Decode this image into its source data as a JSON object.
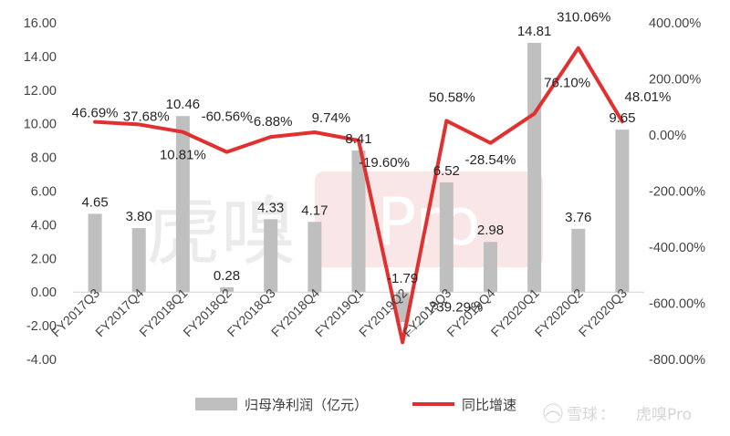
{
  "chart_data": {
    "type": "bar+line",
    "categories": [
      "FY2017Q3",
      "FY2017Q4",
      "FY2018Q1",
      "FY2018Q2",
      "FY2018Q3",
      "FY2018Q4",
      "FY2019Q1",
      "FY2019Q2",
      "FY2019Q3",
      "FY2019Q4",
      "FY2020Q1",
      "FY2020Q2",
      "FY2020Q3"
    ],
    "bar_series": {
      "name": "归母净利润（亿元）",
      "values": [
        4.65,
        3.8,
        10.46,
        0.28,
        4.33,
        4.17,
        8.41,
        -1.79,
        6.52,
        2.98,
        14.81,
        3.76,
        9.65
      ],
      "labels": [
        "4.65",
        "3.80",
        "10.46",
        "0.28",
        "4.33",
        "4.17",
        "8.41",
        "-1.79",
        "6.52",
        "2.98",
        "14.81",
        "3.76",
        "9.65"
      ],
      "color": "#bfbfbf"
    },
    "line_series": {
      "name": "同比增速",
      "values": [
        46.69,
        37.68,
        10.81,
        -60.56,
        -6.88,
        9.74,
        -19.6,
        -739.29,
        50.58,
        -28.54,
        76.1,
        310.06,
        48.01
      ],
      "labels": [
        "46.69%",
        "37.68%",
        "10.81%",
        "-60.56%",
        "-6.88%",
        "9.74%",
        "-19.60%",
        "-739.29%",
        "50.58%",
        "-28.54%",
        "76.10%",
        "310.06%",
        "48.01%"
      ],
      "color": "#e03030"
    },
    "y_left": {
      "min": -4,
      "max": 16,
      "step": 2,
      "tick_labels": [
        "-4.00",
        "-2.00",
        "0.00",
        "2.00",
        "4.00",
        "6.00",
        "8.00",
        "10.00",
        "12.00",
        "14.00",
        "16.00"
      ]
    },
    "y_right": {
      "min": -800,
      "max": 400,
      "step": 200,
      "tick_labels": [
        "-800.00%",
        "-600.00%",
        "-400.00%",
        "-200.00%",
        "0.00%",
        "200.00%",
        "400.00%"
      ]
    },
    "grid": false,
    "legend_position": "bottom"
  },
  "watermarks": {
    "center_text": "虎嗅",
    "center_latin": "Pro",
    "corner_brand": "雪球",
    "corner_separator": "：",
    "corner_name": "虎嗅Pro"
  }
}
